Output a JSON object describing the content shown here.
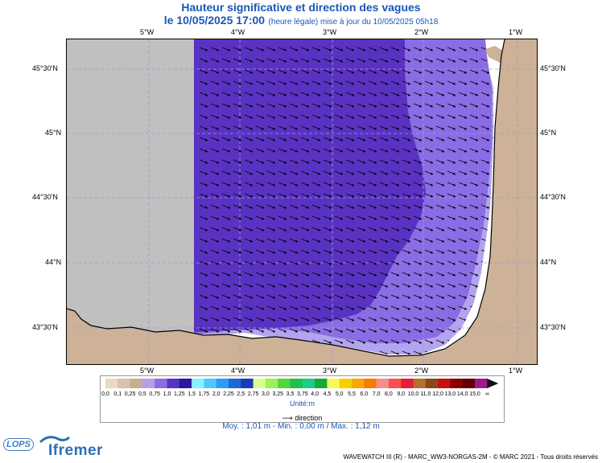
{
  "header": {
    "title": "Hauteur significative et direction des vagues",
    "date_label": "le 10/05/2025 17:00",
    "time_note": "(heure légale) mise à jour du 10/05/2025 05h18"
  },
  "map": {
    "lon_ticks": [
      "5°W",
      "4°W",
      "3°W",
      "2°W",
      "1°W"
    ],
    "lat_ticks": [
      "45°30'N",
      "45°N",
      "44°30'N",
      "44°N",
      "43°30'N"
    ],
    "colors": {
      "no_data": "#c0c0c0",
      "wave_1_00": "#5a32c2",
      "wave_0_75": "#8a6ce4",
      "wave_0_50": "#b3a4ef",
      "land": "#cdb298",
      "graticule": "#9a9ad8"
    },
    "arrow_direction": "south-east"
  },
  "legend": {
    "labels": [
      "0,0",
      "0,1",
      "0,25",
      "0,5",
      "0,75",
      "1,0",
      "1,25",
      "1,5",
      "1,75",
      "2,0",
      "2,25",
      "2,5",
      "2,75",
      "3,0",
      "3,25",
      "3,5",
      "3,75",
      "4,0",
      "4,5",
      "5,0",
      "5,5",
      "6,0",
      "7,0",
      "8,0",
      "9,0",
      "10,0",
      "11,0",
      "12,0",
      "13,0",
      "14,0",
      "15,0",
      "∞"
    ],
    "colors": [
      "#e8d9c8",
      "#d9c2a7",
      "#c8ad8f",
      "#b5a0e6",
      "#8a6ce4",
      "#5a32c2",
      "#2f17a0",
      "#88f0ff",
      "#4cc8ff",
      "#2f9cf2",
      "#1c68d8",
      "#1a3cb6",
      "#d8ff8c",
      "#9cf05a",
      "#4ed83c",
      "#22c04a",
      "#1ccc8a",
      "#18a83a",
      "#f8f858",
      "#f8d000",
      "#f8a800",
      "#f87c00",
      "#f88c8c",
      "#f85050",
      "#e81c38",
      "#b0722c",
      "#8a4a18",
      "#c81010",
      "#8a0000",
      "#600000",
      "#a01890"
    ],
    "unit": "Unité:m",
    "direction_label": "direction"
  },
  "stats": "Moy. : 1,01 m   -   Min. : 0,00 m / Max. : 1,12 m",
  "footer": "WAVEWATCH III (R) - MARC_WW3-NORGAS-2M - © MARC 2021 - Tous droits réservés",
  "logos": {
    "lops": "LOPS",
    "ifremer": "Ifremer"
  }
}
